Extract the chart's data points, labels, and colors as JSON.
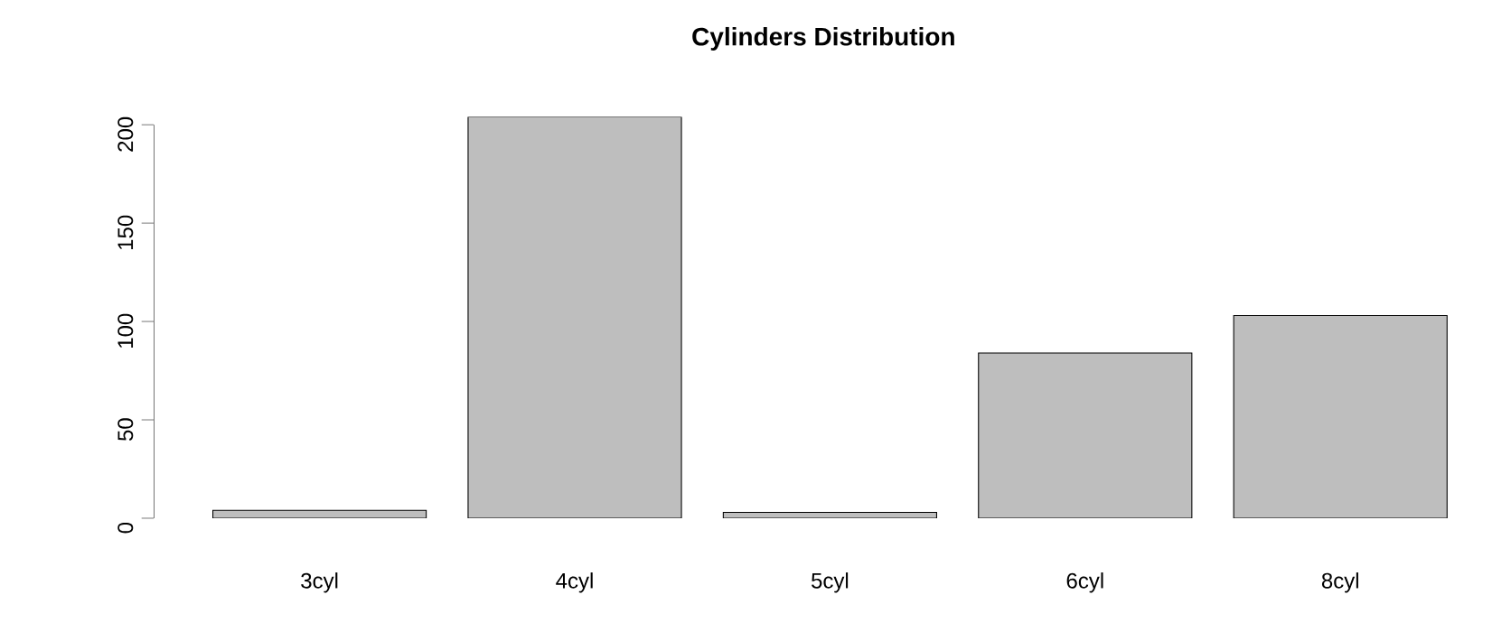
{
  "chart_data": {
    "type": "bar",
    "title": "Cylinders Distribution",
    "categories": [
      "3cyl",
      "4cyl",
      "5cyl",
      "6cyl",
      "8cyl"
    ],
    "values": [
      4,
      204,
      3,
      84,
      103
    ],
    "color": "#bebebe",
    "ylim": [
      0,
      204
    ],
    "yticks": [
      0,
      50,
      100,
      150,
      200
    ],
    "grid": false
  }
}
